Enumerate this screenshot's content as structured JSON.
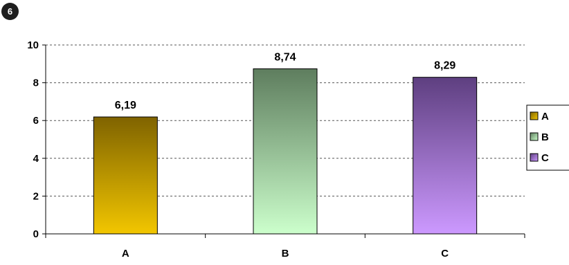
{
  "badge": "6",
  "chart_data": {
    "type": "bar",
    "categories": [
      "A",
      "B",
      "C"
    ],
    "values": [
      6.19,
      8.74,
      8.29
    ],
    "value_labels": [
      "6,19",
      "8,74",
      "8,29"
    ],
    "ylim": [
      0,
      10
    ],
    "yticks": [
      0,
      2,
      4,
      6,
      8,
      10
    ],
    "grid": true,
    "legend": {
      "placement": "right",
      "entries": [
        "A",
        "B",
        "C"
      ]
    },
    "colors": {
      "A": {
        "top": "#7f6300",
        "bottom": "#f2c600"
      },
      "B": {
        "top": "#5e7d5e",
        "bottom": "#ccffcc"
      },
      "C": {
        "top": "#5e3f80",
        "bottom": "#cc99ff"
      }
    }
  }
}
